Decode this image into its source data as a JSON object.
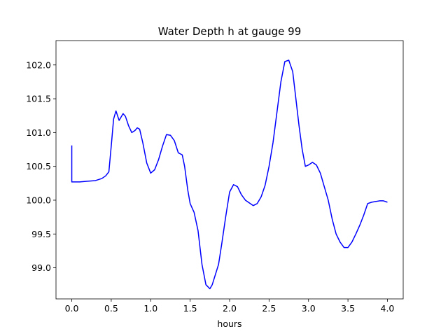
{
  "chart_data": {
    "type": "line",
    "title": "Water Depth h at gauge 99",
    "xlabel": "hours",
    "ylabel": "",
    "xlim": [
      -0.2,
      4.2
    ],
    "ylim": [
      98.54,
      102.36
    ],
    "x_ticks": [
      0.0,
      0.5,
      1.0,
      1.5,
      2.0,
      2.5,
      3.0,
      3.5,
      4.0
    ],
    "x_tick_labels": [
      "0.0",
      "0.5",
      "1.0",
      "1.5",
      "2.0",
      "2.5",
      "3.0",
      "3.5",
      "4.0"
    ],
    "y_ticks": [
      99.0,
      99.5,
      100.0,
      100.5,
      101.0,
      101.5,
      102.0
    ],
    "y_tick_labels": [
      "99.0",
      "99.5",
      "100.0",
      "100.5",
      "101.0",
      "101.5",
      "102.0"
    ],
    "grid": false,
    "legend": "none",
    "series": [
      {
        "color": "#0000ff",
        "x": [
          0.0,
          0.0,
          0.05,
          0.1,
          0.2,
          0.3,
          0.38,
          0.43,
          0.47,
          0.5,
          0.53,
          0.56,
          0.58,
          0.6,
          0.62,
          0.65,
          0.68,
          0.72,
          0.76,
          0.8,
          0.83,
          0.86,
          0.9,
          0.95,
          1.0,
          1.05,
          1.1,
          1.15,
          1.2,
          1.25,
          1.3,
          1.35,
          1.4,
          1.43,
          1.47,
          1.5,
          1.55,
          1.6,
          1.65,
          1.7,
          1.75,
          1.78,
          1.82,
          1.86,
          1.9,
          1.95,
          2.0,
          2.05,
          2.1,
          2.15,
          2.2,
          2.25,
          2.3,
          2.35,
          2.4,
          2.45,
          2.5,
          2.55,
          2.6,
          2.65,
          2.7,
          2.75,
          2.8,
          2.82,
          2.85,
          2.88,
          2.92,
          2.96,
          3.0,
          3.05,
          3.1,
          3.15,
          3.2,
          3.25,
          3.3,
          3.35,
          3.4,
          3.45,
          3.5,
          3.55,
          3.6,
          3.65,
          3.7,
          3.75,
          3.8,
          3.85,
          3.9,
          3.95,
          4.0
        ],
        "values": [
          100.81,
          100.27,
          100.27,
          100.27,
          100.28,
          100.29,
          100.32,
          100.36,
          100.42,
          100.8,
          101.2,
          101.32,
          101.25,
          101.18,
          101.22,
          101.28,
          101.24,
          101.1,
          101.0,
          101.03,
          101.07,
          101.05,
          100.85,
          100.55,
          100.4,
          100.45,
          100.6,
          100.8,
          100.97,
          100.96,
          100.88,
          100.7,
          100.67,
          100.5,
          100.15,
          99.95,
          99.82,
          99.55,
          99.05,
          98.75,
          98.69,
          98.75,
          98.9,
          99.05,
          99.35,
          99.75,
          100.12,
          100.23,
          100.2,
          100.08,
          100.0,
          99.96,
          99.92,
          99.95,
          100.05,
          100.22,
          100.5,
          100.85,
          101.3,
          101.75,
          102.05,
          102.07,
          101.9,
          101.7,
          101.4,
          101.1,
          100.75,
          100.5,
          100.52,
          100.56,
          100.52,
          100.4,
          100.2,
          100.0,
          99.72,
          99.5,
          99.38,
          99.3,
          99.3,
          99.38,
          99.5,
          99.63,
          99.78,
          99.95,
          99.97,
          99.98,
          99.99,
          99.99,
          99.97
        ]
      }
    ]
  }
}
